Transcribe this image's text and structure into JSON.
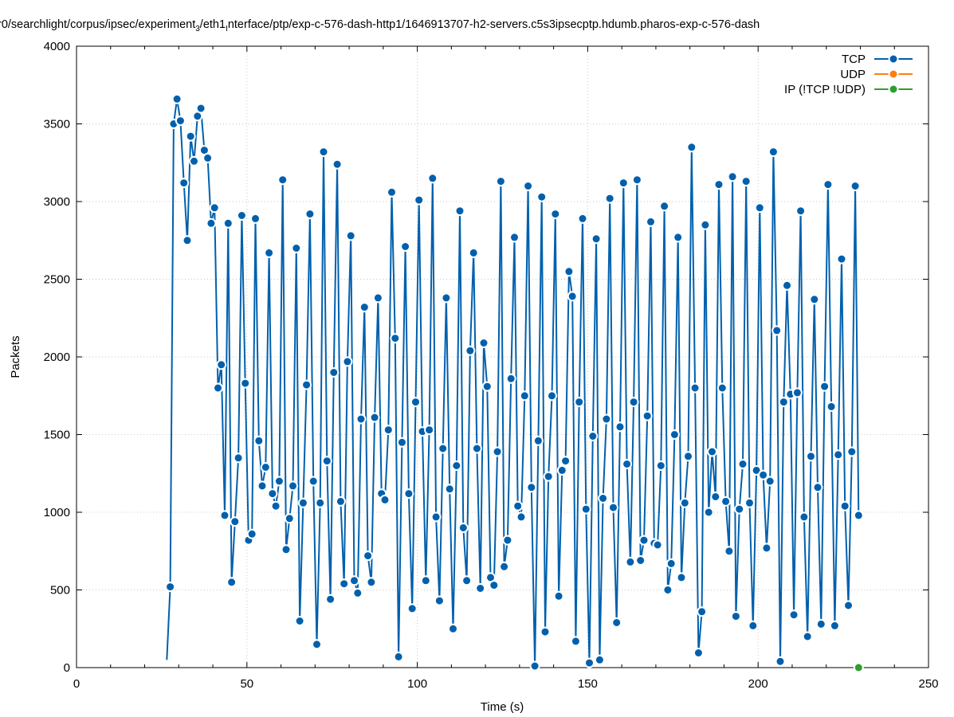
{
  "chart_data": {
    "type": "line",
    "title": "r0/searchlight/corpus/ipsec/experiment_3/eth1_interface/ptp/exp-c-576-dash-http1/1646913707-h2-servers.c5s3ipsecptp.hdumb.pharos-exp-c-576-dash",
    "title_prefix": "r0/searchlight/corpus/ipsec/experiment",
    "title_sub_3": "3",
    "title_mid": "/eth1",
    "title_sub_i": "I",
    "title_suffix": "nterface/ptp/exp-c-576-dash-http1/1646913707-h2-servers.c5s3ipsecptp.hdumb.pharos-exp-c-576-dash",
    "xlabel": "Time (s)",
    "ylabel": "Packets",
    "xlim": [
      0,
      250
    ],
    "ylim": [
      0,
      4000
    ],
    "xticks": [
      0,
      50,
      100,
      150,
      200,
      250
    ],
    "yticks": [
      0,
      500,
      1000,
      1500,
      2000,
      2500,
      3000,
      3500,
      4000
    ],
    "grid": true,
    "legend_position": "top-right",
    "series": [
      {
        "name": "TCP",
        "color": "#0060ad",
        "line_start": [
          26.5,
          50
        ],
        "points": [
          [
            27.5,
            520
          ],
          [
            28.5,
            3500
          ],
          [
            29.5,
            3660
          ],
          [
            30.5,
            3520
          ],
          [
            31.5,
            3120
          ],
          [
            32.5,
            2750
          ],
          [
            33.5,
            3420
          ],
          [
            34.5,
            3260
          ],
          [
            35.5,
            3550
          ],
          [
            36.5,
            3600
          ],
          [
            37.5,
            3330
          ],
          [
            38.5,
            3280
          ],
          [
            39.5,
            2860
          ],
          [
            40.5,
            2960
          ],
          [
            41.5,
            1800
          ],
          [
            42.5,
            1950
          ],
          [
            43.5,
            980
          ],
          [
            44.5,
            2860
          ],
          [
            45.5,
            550
          ],
          [
            46.5,
            940
          ],
          [
            47.5,
            1350
          ],
          [
            48.5,
            2910
          ],
          [
            49.5,
            1830
          ],
          [
            50.5,
            820
          ],
          [
            51.5,
            860
          ],
          [
            52.5,
            2890
          ],
          [
            53.5,
            1460
          ],
          [
            54.5,
            1170
          ],
          [
            55.5,
            1290
          ],
          [
            56.5,
            2670
          ],
          [
            57.5,
            1120
          ],
          [
            58.5,
            1040
          ],
          [
            59.5,
            1200
          ],
          [
            60.5,
            3140
          ],
          [
            61.5,
            760
          ],
          [
            62.5,
            960
          ],
          [
            63.5,
            1170
          ],
          [
            64.5,
            2700
          ],
          [
            65.5,
            300
          ],
          [
            66.5,
            1060
          ],
          [
            67.5,
            1820
          ],
          [
            68.5,
            2920
          ],
          [
            69.5,
            1200
          ],
          [
            70.5,
            150
          ],
          [
            71.5,
            1060
          ],
          [
            72.5,
            3320
          ],
          [
            73.5,
            1330
          ],
          [
            74.5,
            440
          ],
          [
            75.5,
            1900
          ],
          [
            76.5,
            3240
          ],
          [
            77.5,
            1070
          ],
          [
            78.5,
            540
          ],
          [
            79.5,
            1970
          ],
          [
            80.5,
            2780
          ],
          [
            81.5,
            560
          ],
          [
            82.5,
            480
          ],
          [
            83.5,
            1600
          ],
          [
            84.5,
            2320
          ],
          [
            85.5,
            720
          ],
          [
            86.5,
            550
          ],
          [
            87.5,
            1610
          ],
          [
            88.5,
            2380
          ],
          [
            89.5,
            1120
          ],
          [
            90.5,
            1080
          ],
          [
            91.5,
            1530
          ],
          [
            92.5,
            3060
          ],
          [
            93.5,
            2120
          ],
          [
            94.5,
            70
          ],
          [
            95.5,
            1450
          ],
          [
            96.5,
            2710
          ],
          [
            97.5,
            1120
          ],
          [
            98.5,
            380
          ],
          [
            99.5,
            1710
          ],
          [
            100.5,
            3010
          ],
          [
            101.5,
            1520
          ],
          [
            102.5,
            560
          ],
          [
            103.5,
            1530
          ],
          [
            104.5,
            3150
          ],
          [
            105.5,
            970
          ],
          [
            106.5,
            430
          ],
          [
            107.5,
            1410
          ],
          [
            108.5,
            2380
          ],
          [
            109.5,
            1150
          ],
          [
            110.5,
            250
          ],
          [
            111.5,
            1300
          ],
          [
            112.5,
            2940
          ],
          [
            113.5,
            900
          ],
          [
            114.5,
            560
          ],
          [
            115.5,
            2040
          ],
          [
            116.5,
            2670
          ],
          [
            117.5,
            1410
          ],
          [
            118.5,
            510
          ],
          [
            119.5,
            2090
          ],
          [
            120.5,
            1810
          ],
          [
            121.5,
            580
          ],
          [
            122.5,
            530
          ],
          [
            123.5,
            1390
          ],
          [
            124.5,
            3130
          ],
          [
            125.5,
            650
          ],
          [
            126.5,
            820
          ],
          [
            127.5,
            1860
          ],
          [
            128.5,
            2770
          ],
          [
            129.5,
            1040
          ],
          [
            130.5,
            970
          ],
          [
            131.5,
            1750
          ],
          [
            132.5,
            3100
          ],
          [
            133.5,
            1160
          ],
          [
            134.5,
            10
          ],
          [
            135.5,
            1460
          ],
          [
            136.5,
            3030
          ],
          [
            137.5,
            230
          ],
          [
            138.5,
            1230
          ],
          [
            139.5,
            1750
          ],
          [
            140.5,
            2920
          ],
          [
            141.5,
            460
          ],
          [
            142.5,
            1270
          ],
          [
            143.5,
            1330
          ],
          [
            144.5,
            2550
          ],
          [
            145.5,
            2390
          ],
          [
            146.5,
            170
          ],
          [
            147.5,
            1710
          ],
          [
            148.5,
            2890
          ],
          [
            149.5,
            1020
          ],
          [
            150.5,
            30
          ],
          [
            151.5,
            1490
          ],
          [
            152.5,
            2760
          ],
          [
            153.5,
            50
          ],
          [
            154.5,
            1090
          ],
          [
            155.5,
            1600
          ],
          [
            156.5,
            3020
          ],
          [
            157.5,
            1030
          ],
          [
            158.5,
            290
          ],
          [
            159.5,
            1550
          ],
          [
            160.5,
            3120
          ],
          [
            161.5,
            1310
          ],
          [
            162.5,
            680
          ],
          [
            163.5,
            1710
          ],
          [
            164.5,
            3140
          ],
          [
            165.5,
            690
          ],
          [
            166.5,
            820
          ],
          [
            167.5,
            1620
          ],
          [
            168.5,
            2870
          ],
          [
            169.5,
            800
          ],
          [
            170.5,
            790
          ],
          [
            171.5,
            1300
          ],
          [
            172.5,
            2970
          ],
          [
            173.5,
            500
          ],
          [
            174.5,
            670
          ],
          [
            175.5,
            1500
          ],
          [
            176.5,
            2770
          ],
          [
            177.5,
            580
          ],
          [
            178.5,
            1060
          ],
          [
            179.5,
            1360
          ],
          [
            180.5,
            3350
          ],
          [
            181.5,
            1800
          ],
          [
            182.5,
            95
          ],
          [
            183.5,
            360
          ],
          [
            184.5,
            2850
          ],
          [
            185.5,
            1000
          ],
          [
            186.5,
            1390
          ],
          [
            187.5,
            1100
          ],
          [
            188.5,
            3110
          ],
          [
            189.5,
            1800
          ],
          [
            190.5,
            1070
          ],
          [
            191.5,
            750
          ],
          [
            192.5,
            3160
          ],
          [
            193.5,
            330
          ],
          [
            194.5,
            1020
          ],
          [
            195.5,
            1310
          ],
          [
            196.5,
            3130
          ],
          [
            197.5,
            1060
          ],
          [
            198.5,
            270
          ],
          [
            199.5,
            1270
          ],
          [
            200.5,
            2960
          ],
          [
            201.5,
            1240
          ],
          [
            202.5,
            770
          ],
          [
            203.5,
            1200
          ],
          [
            204.5,
            3320
          ],
          [
            205.5,
            2170
          ],
          [
            206.5,
            40
          ],
          [
            207.5,
            1710
          ],
          [
            208.5,
            2460
          ],
          [
            209.5,
            1760
          ],
          [
            210.5,
            340
          ],
          [
            211.5,
            1770
          ],
          [
            212.5,
            2940
          ],
          [
            213.5,
            970
          ],
          [
            214.5,
            200
          ],
          [
            215.5,
            1360
          ],
          [
            216.5,
            2370
          ],
          [
            217.5,
            1160
          ],
          [
            218.5,
            280
          ],
          [
            219.5,
            1810
          ],
          [
            220.5,
            3110
          ],
          [
            221.5,
            1680
          ],
          [
            222.5,
            270
          ],
          [
            223.5,
            1370
          ],
          [
            224.5,
            2630
          ],
          [
            225.5,
            1040
          ],
          [
            226.5,
            400
          ],
          [
            227.5,
            1390
          ],
          [
            228.5,
            3100
          ],
          [
            229.5,
            980
          ]
        ]
      },
      {
        "name": "UDP",
        "color": "#ff7f0e",
        "points": []
      },
      {
        "name": "IP (!TCP  !UDP)",
        "color": "#2ca02c",
        "points": [
          [
            229.5,
            0
          ]
        ]
      }
    ]
  }
}
